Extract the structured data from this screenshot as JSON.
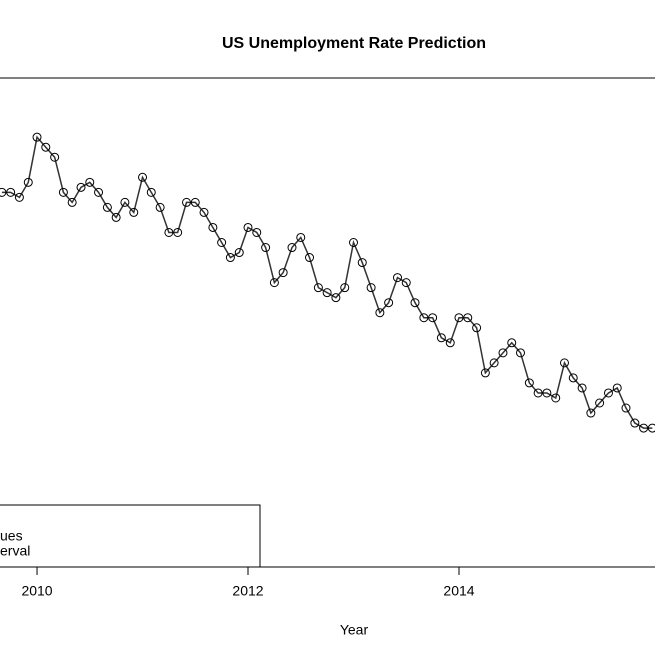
{
  "chart_data": {
    "type": "line",
    "title": "US Unemployment Rate Prediction",
    "xlabel": "Year",
    "x": [
      2009.667,
      2009.75,
      2009.833,
      2009.917,
      2010.0,
      2010.083,
      2010.167,
      2010.25,
      2010.333,
      2010.417,
      2010.5,
      2010.583,
      2010.667,
      2010.75,
      2010.833,
      2010.917,
      2011.0,
      2011.083,
      2011.167,
      2011.25,
      2011.333,
      2011.417,
      2011.5,
      2011.583,
      2011.667,
      2011.75,
      2011.833,
      2011.917,
      2012.0,
      2012.083,
      2012.167,
      2012.25,
      2012.333,
      2012.417,
      2012.5,
      2012.583,
      2012.667,
      2012.75,
      2012.833,
      2012.917,
      2013.0,
      2013.083,
      2013.167,
      2013.25,
      2013.333,
      2013.417,
      2013.5,
      2013.583,
      2013.667,
      2013.75,
      2013.833,
      2013.917,
      2014.0,
      2014.083,
      2014.167,
      2014.25,
      2014.333,
      2014.417,
      2014.5,
      2014.583,
      2014.667,
      2014.75,
      2014.833,
      2014.917,
      2015.0,
      2015.083,
      2015.167,
      2015.25,
      2015.333,
      2015.417,
      2015.5,
      2015.583,
      2015.667,
      2015.75,
      2015.833
    ],
    "series": [
      {
        "color": "#333333",
        "values": [
          9.5,
          9.5,
          9.4,
          9.7,
          10.6,
          10.4,
          10.2,
          9.5,
          9.3,
          9.6,
          9.7,
          9.5,
          9.2,
          9.0,
          9.3,
          9.1,
          9.8,
          9.5,
          9.2,
          8.7,
          8.7,
          9.3,
          9.3,
          9.1,
          8.8,
          8.5,
          8.2,
          8.3,
          8.8,
          8.7,
          8.4,
          7.7,
          7.9,
          8.4,
          8.6,
          8.2,
          7.6,
          7.5,
          7.4,
          7.6,
          8.5,
          8.1,
          7.6,
          7.1,
          7.3,
          7.8,
          7.7,
          7.3,
          7.0,
          7.0,
          6.6,
          6.5,
          7.0,
          7.0,
          6.8,
          5.9,
          6.1,
          6.3,
          6.5,
          6.3,
          5.7,
          5.5,
          5.5,
          5.4,
          6.1,
          5.8,
          5.6,
          5.1,
          5.3,
          5.5,
          5.6,
          5.2,
          4.9,
          4.8,
          4.8
        ]
      }
    ],
    "legend": [
      "ues",
      "erval"
    ],
    "xlim": [
      2009.649,
      2015.858
    ],
    "xticks": [
      2010,
      2012,
      2014
    ],
    "ylim": [
      2.03,
      11.78
    ]
  }
}
